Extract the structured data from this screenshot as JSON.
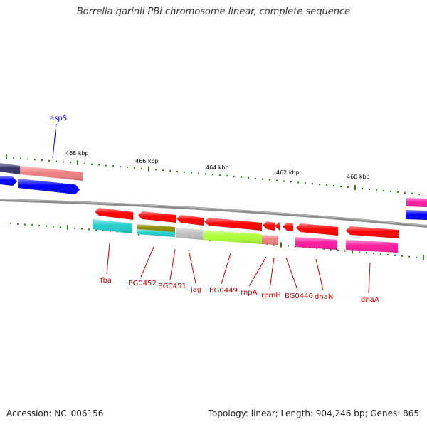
{
  "title": "Borrelia garinii PBi chromosome linear, complete sequence",
  "accession": "Accession: NC_006156",
  "summary": "Topology: linear; Length: 904,246 bp; Genes: 865",
  "scale_labels": [
    "468 kbp",
    "466 kbp",
    "464 kbp",
    "462 kbp",
    "460 kbp"
  ],
  "genes_top": [
    "aspS"
  ],
  "genes_bottom": [
    "fba",
    "BG0452",
    "BG0451",
    "jag",
    "BG0449",
    "rnpA",
    "rpmH",
    "BG0446",
    "dnaN",
    "dnaA"
  ],
  "colors": {
    "label_top": "#0000cc",
    "label_bottom": "#cc0000",
    "tick": "#2e7d1a",
    "backbone": "#8c8c8c",
    "red": "#ff0000",
    "blue": "#0000ff",
    "magenta": "#ff1aa0",
    "cyan": "#22cccc",
    "lime": "#aaff33",
    "salmon": "#f08080",
    "olive": "#8b8b00",
    "gray": "#c0c0c0",
    "navy": "#333366"
  }
}
